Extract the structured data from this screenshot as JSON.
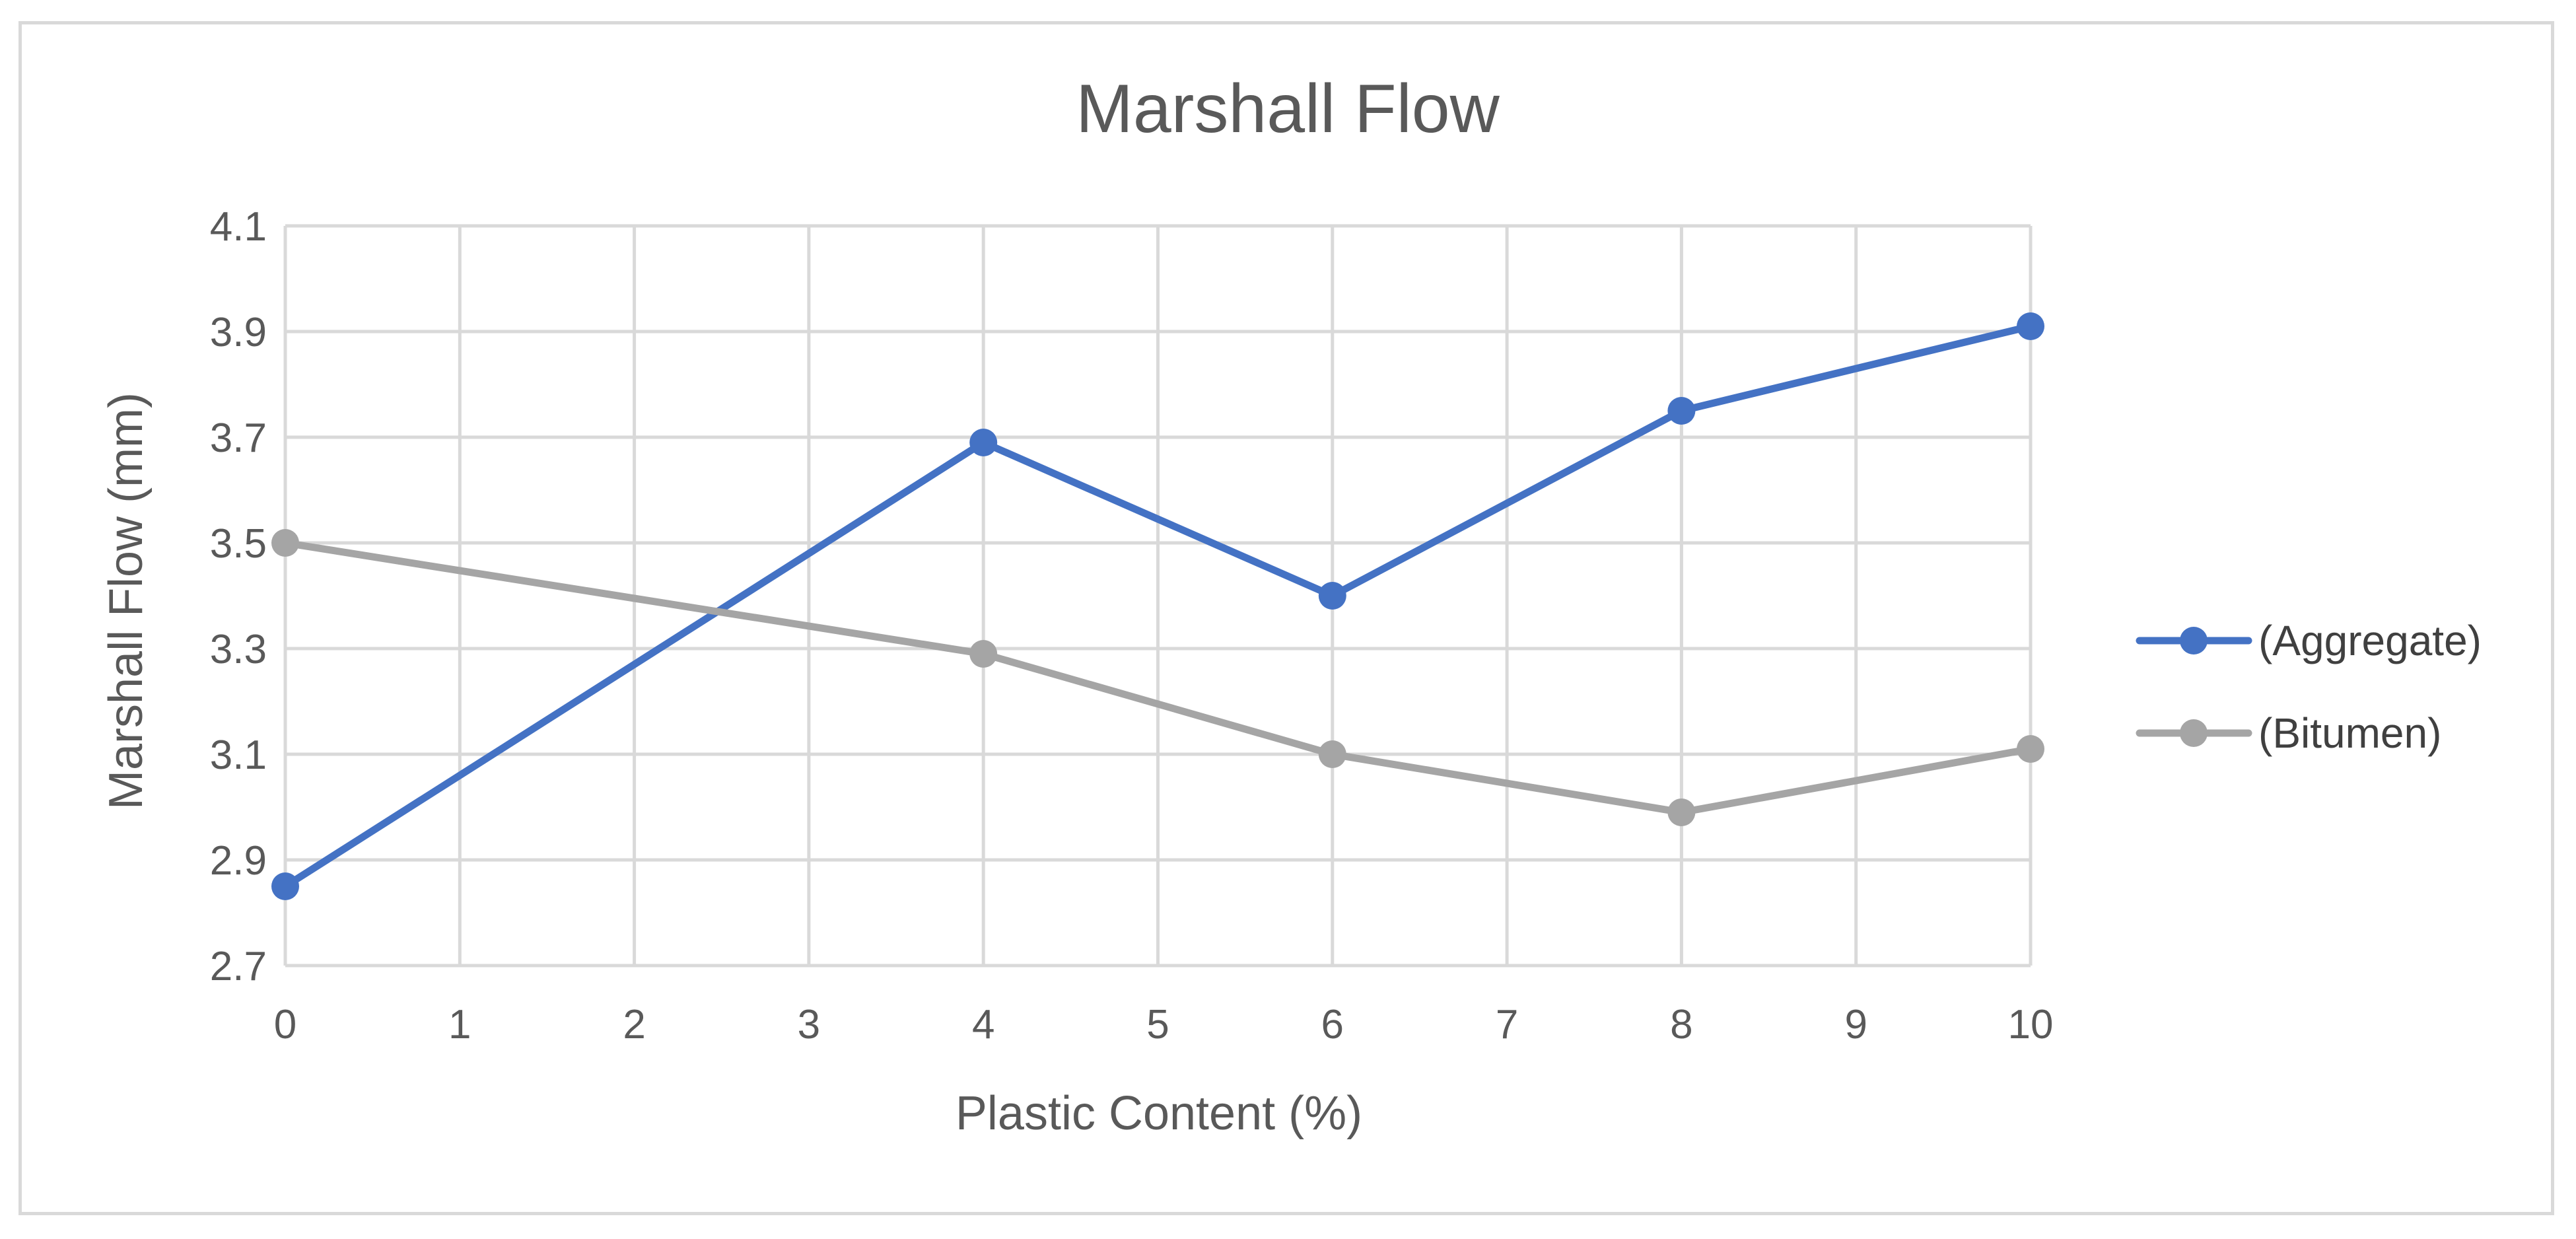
{
  "chart_data": {
    "type": "line",
    "title": "Marshall Flow",
    "xlabel": "Plastic Content (%)",
    "ylabel": "Marshall Flow (mm)",
    "xlim": [
      0,
      10
    ],
    "ylim": [
      2.7,
      4.1
    ],
    "x_ticks": [
      "0",
      "1",
      "2",
      "3",
      "4",
      "5",
      "6",
      "7",
      "8",
      "9",
      "10"
    ],
    "y_ticks": [
      "2.7",
      "2.9",
      "3.1",
      "3.3",
      "3.5",
      "3.7",
      "3.9",
      "4.1"
    ],
    "grid": true,
    "legend_position": "right",
    "series": [
      {
        "name": "(Aggregate)",
        "color": "#4472c4",
        "x": [
          0,
          4,
          6,
          8,
          10
        ],
        "y": [
          2.85,
          3.69,
          3.4,
          3.75,
          3.91
        ]
      },
      {
        "name": "(Bitumen)",
        "color": "#a5a5a5",
        "x": [
          0,
          4,
          6,
          8,
          10
        ],
        "y": [
          3.5,
          3.29,
          3.1,
          2.99,
          3.11
        ]
      }
    ]
  }
}
